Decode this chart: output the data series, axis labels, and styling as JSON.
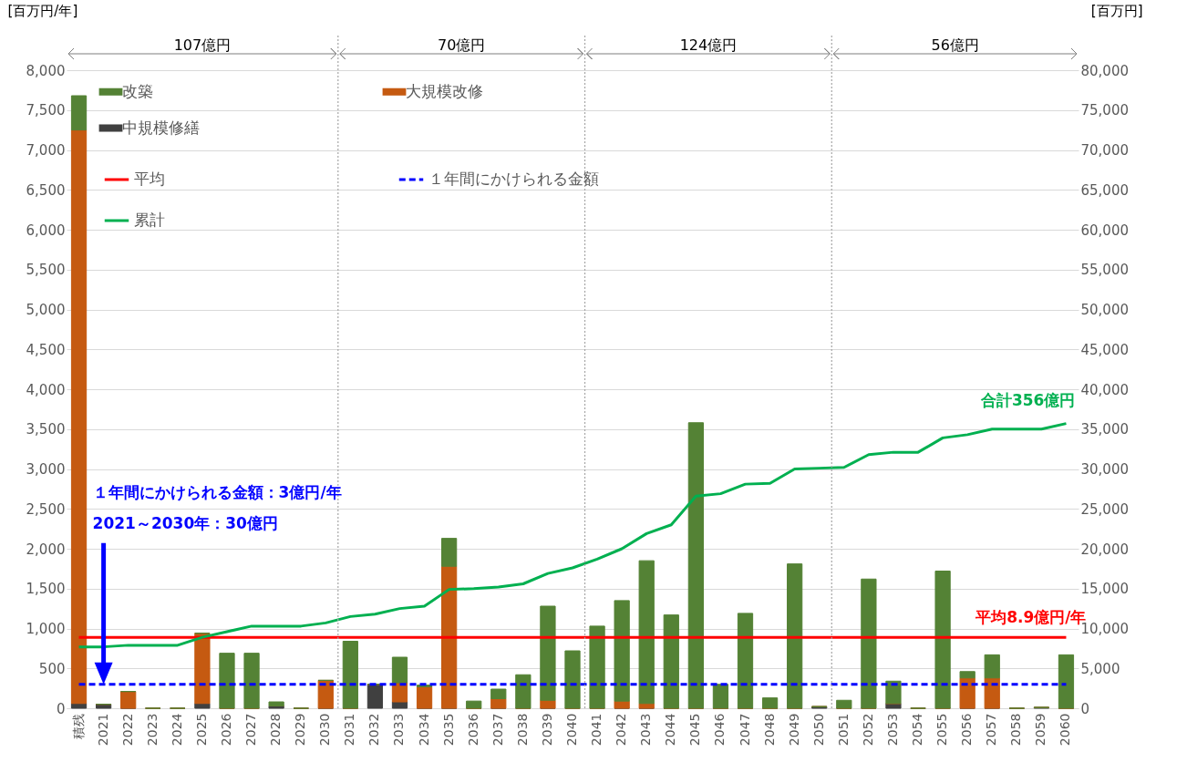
{
  "chart_data": {
    "type": "bar",
    "stacked": true,
    "ylabel": "[百万円/年]",
    "y2label": "[百万円]",
    "categories": [
      "積残",
      "2021",
      "2022",
      "2023",
      "2024",
      "2025",
      "2026",
      "2027",
      "2028",
      "2029",
      "2030",
      "2031",
      "2032",
      "2033",
      "2034",
      "2035",
      "2036",
      "2037",
      "2038",
      "2039",
      "2040",
      "2041",
      "2042",
      "2043",
      "2044",
      "2045",
      "2046",
      "2047",
      "2048",
      "2049",
      "2050",
      "2051",
      "2052",
      "2053",
      "2054",
      "2055",
      "2056",
      "2057",
      "2058",
      "2059",
      "2060"
    ],
    "series": [
      {
        "name": "中規模修繕",
        "color": "#404040",
        "values": [
          60,
          50,
          0,
          0,
          0,
          60,
          0,
          0,
          30,
          0,
          0,
          0,
          300,
          80,
          0,
          0,
          0,
          0,
          0,
          0,
          0,
          0,
          0,
          0,
          0,
          0,
          0,
          0,
          0,
          0,
          20,
          0,
          0,
          60,
          0,
          0,
          0,
          0,
          0,
          10,
          0
        ]
      },
      {
        "name": "大規模改修",
        "color": "#c55a11",
        "values": [
          7190,
          0,
          210,
          0,
          0,
          880,
          0,
          0,
          0,
          0,
          350,
          0,
          0,
          240,
          270,
          1780,
          0,
          120,
          0,
          100,
          0,
          0,
          90,
          60,
          0,
          0,
          0,
          0,
          0,
          0,
          0,
          0,
          0,
          0,
          0,
          0,
          380,
          380,
          0,
          0,
          0
        ]
      },
      {
        "name": "改築",
        "color": "#548235",
        "values": [
          430,
          0,
          0,
          0,
          0,
          0,
          690,
          690,
          50,
          0,
          0,
          840,
          0,
          320,
          20,
          350,
          90,
          120,
          420,
          1180,
          720,
          1030,
          1260,
          1790,
          1170,
          3580,
          300,
          1190,
          130,
          1810,
          0,
          100,
          1620,
          280,
          0,
          1720,
          80,
          290,
          0,
          0,
          670
        ]
      },
      {
        "name": "平均",
        "type": "line",
        "color": "#ff0000",
        "values": [
          890,
          890,
          890,
          890,
          890,
          890,
          890,
          890,
          890,
          890,
          890,
          890,
          890,
          890,
          890,
          890,
          890,
          890,
          890,
          890,
          890,
          890,
          890,
          890,
          890,
          890,
          890,
          890,
          890,
          890,
          890,
          890,
          890,
          890,
          890,
          890,
          890,
          890,
          890,
          890,
          890
        ]
      },
      {
        "name": "１年間にかけられる金額",
        "type": "line",
        "color": "#0000ff",
        "line_style": "dashed",
        "values": [
          300,
          300,
          300,
          300,
          300,
          300,
          300,
          300,
          300,
          300,
          300,
          300,
          300,
          300,
          300,
          300,
          300,
          300,
          300,
          300,
          300,
          300,
          300,
          300,
          300,
          300,
          300,
          300,
          300,
          300,
          300,
          300,
          300,
          300,
          300,
          300,
          300,
          300,
          300,
          300,
          300
        ]
      },
      {
        "name": "累計",
        "type": "line",
        "color": "#00b050",
        "axis": "y2",
        "values": [
          7700,
          7700,
          7900,
          7900,
          7900,
          8900,
          9600,
          10300,
          10300,
          10300,
          10700,
          11500,
          11800,
          12500,
          12800,
          14900,
          15000,
          15200,
          15600,
          16900,
          17600,
          18700,
          20000,
          21900,
          23000,
          26600,
          26900,
          28100,
          28200,
          30000,
          30100,
          30200,
          31800,
          32100,
          32100,
          33900,
          34300,
          35000,
          35000,
          35000,
          35700
        ]
      }
    ],
    "ylim": [
      0,
      8000
    ],
    "yticks": [
      0,
      500,
      {
        "value": 1000,
        "label": "1,000"
      },
      {
        "value": 1500,
        "label": "1,500"
      },
      {
        "value": 2000,
        "label": "2,000"
      },
      {
        "value": 2500,
        "label": "2,500"
      },
      {
        "value": 3000,
        "label": "3,000"
      },
      {
        "value": 3500,
        "label": "3,500"
      },
      {
        "value": 4000,
        "label": "4,000"
      },
      {
        "value": 4500,
        "label": "4,500"
      },
      {
        "value": 5000,
        "label": "5,000"
      },
      {
        "value": 5500,
        "label": "5,500"
      },
      {
        "value": 6000,
        "label": "6,000"
      },
      {
        "value": 6500,
        "label": "6,500"
      },
      {
        "value": 7000,
        "label": "7,000"
      },
      {
        "value": 7500,
        "label": "7,500"
      },
      {
        "value": 8000,
        "label": "8,000"
      }
    ],
    "y2lim": [
      0,
      80000
    ],
    "y2ticks": [
      0,
      {
        "value": 5000,
        "label": "5,000"
      },
      {
        "value": 10000,
        "label": "10,000"
      },
      {
        "value": 15000,
        "label": "15,000"
      },
      {
        "value": 20000,
        "label": "20,000"
      },
      {
        "value": 25000,
        "label": "25,000"
      },
      {
        "value": 30000,
        "label": "30,000"
      },
      {
        "value": 35000,
        "label": "35,000"
      },
      {
        "value": 40000,
        "label": "40,000"
      },
      {
        "value": 45000,
        "label": "45,000"
      },
      {
        "value": 50000,
        "label": "50,000"
      },
      {
        "value": 55000,
        "label": "55,000"
      },
      {
        "value": 60000,
        "label": "60,000"
      },
      {
        "value": 65000,
        "label": "65,000"
      },
      {
        "value": 70000,
        "label": "70,000"
      },
      {
        "value": 75000,
        "label": "75,000"
      },
      {
        "value": 80000,
        "label": "80,000"
      }
    ],
    "grid": "y",
    "legend": "top left",
    "annotations": [
      "107億円",
      "70億円",
      "124億円",
      "56億円",
      {
        "text": "平均8.9億円/年",
        "x": "2060",
        "y": 890
      },
      "合計356億円",
      "１年間にかけられる金額：3億円/年",
      "2021～2030年：30億円"
    ]
  }
}
